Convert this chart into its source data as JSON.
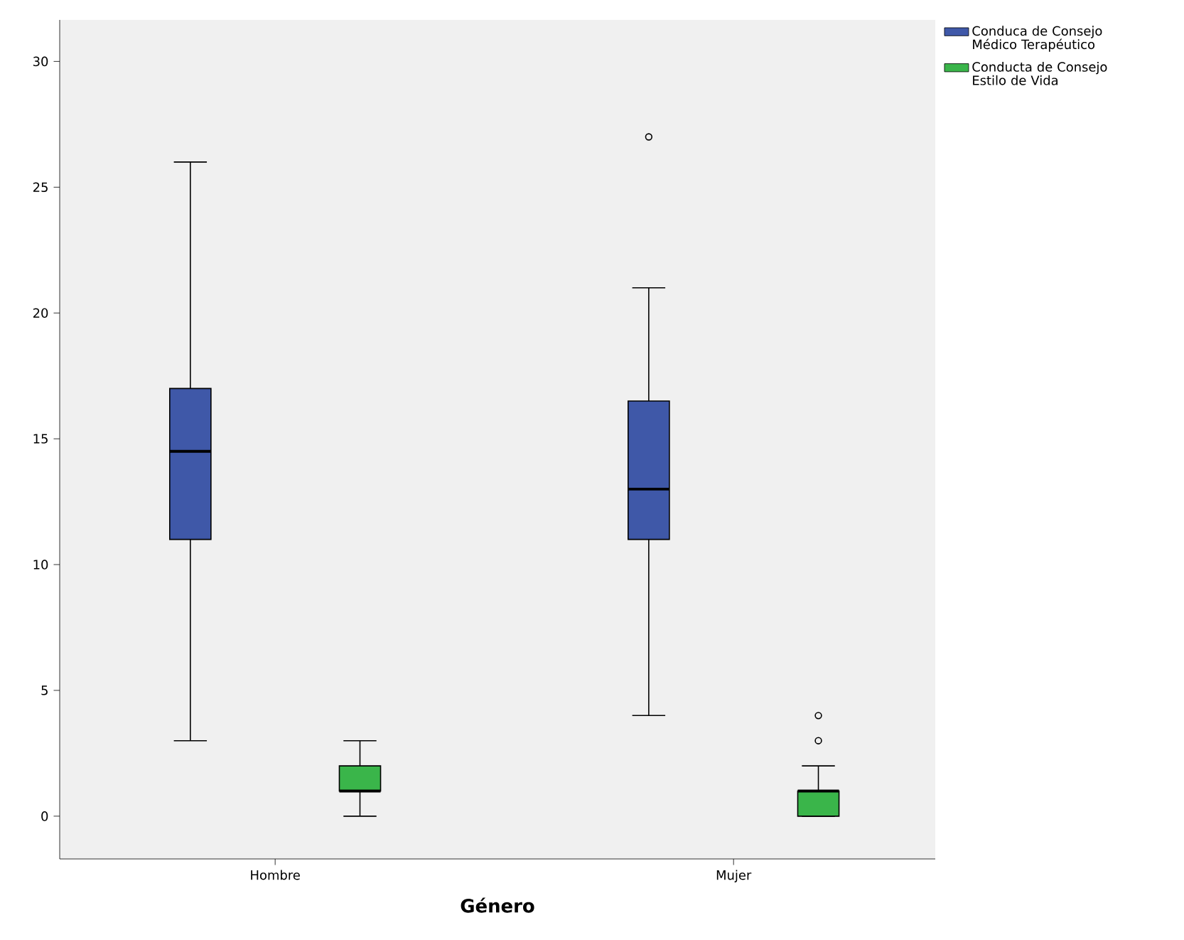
{
  "chart_data": {
    "type": "box",
    "xlabel": "Género",
    "categories": [
      "Hombre",
      "Mujer"
    ],
    "series": [
      {
        "name": "Conduca de Consejo Médico Terapéutico",
        "color": "#3f58a8",
        "boxes": [
          {
            "low": 3,
            "q1": 11,
            "median": 14.5,
            "q3": 17,
            "high": 26
          },
          {
            "low": 4,
            "q1": 11,
            "median": 13,
            "q3": 16.5,
            "high": 21,
            "outliers": [
              27
            ]
          }
        ]
      },
      {
        "name": "Conducta de Consejo Estilo de Vida",
        "color": "#3ab54a",
        "boxes": [
          {
            "low": 0,
            "q1": 1,
            "median": 1,
            "q3": 2,
            "high": 3
          },
          {
            "low": 0,
            "q1": 0,
            "median": 1,
            "q3": 1,
            "high": 2,
            "outliers": [
              3,
              4
            ]
          }
        ]
      }
    ],
    "ylim": [
      -1.7,
      31.65
    ],
    "yticks": [
      0,
      5,
      10,
      15,
      20,
      25,
      30
    ],
    "legend": "top right",
    "grid": false,
    "marker": "circle"
  }
}
